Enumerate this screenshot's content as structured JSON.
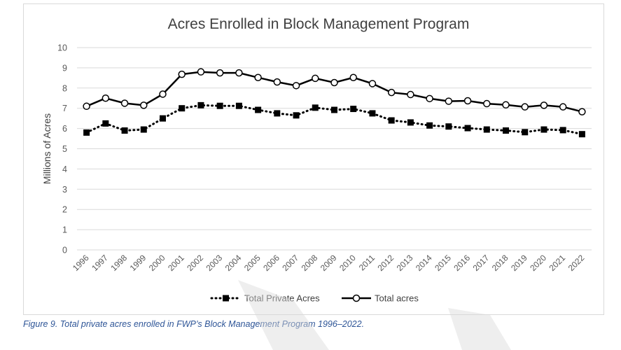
{
  "caption": "Figure 9. Total private acres enrolled in FWP’s Block Management Program 1996–2022.",
  "chart_data": {
    "type": "line",
    "title": "Acres Enrolled in Block Management Program",
    "ylabel": "Millions of Acres",
    "xlabel": "",
    "ylim": [
      0,
      10
    ],
    "yticks": [
      "0",
      "1",
      "2",
      "3",
      "4",
      "5",
      "6",
      "7",
      "8",
      "9",
      "10"
    ],
    "grid": true,
    "legend_position": "bottom",
    "categories": [
      "1996",
      "1997",
      "1998",
      "1999",
      "2000",
      "2001",
      "2002",
      "2003",
      "2004",
      "2005",
      "2006",
      "2007",
      "2008",
      "2009",
      "2010",
      "2011",
      "2012",
      "2013",
      "2014",
      "2015",
      "2016",
      "2017",
      "2018",
      "2019",
      "2020",
      "2021",
      "2022"
    ],
    "series": [
      {
        "name": "Total Private Acres",
        "style": "dotted-square",
        "color": "#000000",
        "values": [
          5.8,
          6.25,
          5.9,
          5.95,
          6.5,
          7.0,
          7.15,
          7.12,
          7.12,
          6.92,
          6.75,
          6.65,
          7.03,
          6.92,
          6.97,
          6.75,
          6.4,
          6.3,
          6.15,
          6.1,
          6.02,
          5.95,
          5.9,
          5.82,
          5.95,
          5.92,
          5.72
        ]
      },
      {
        "name": "Total acres",
        "style": "solid-circle",
        "color": "#000000",
        "values": [
          7.1,
          7.5,
          7.25,
          7.15,
          7.7,
          8.68,
          8.8,
          8.75,
          8.75,
          8.52,
          8.3,
          8.12,
          8.48,
          8.27,
          8.52,
          8.22,
          7.78,
          7.68,
          7.48,
          7.35,
          7.37,
          7.23,
          7.17,
          7.07,
          7.15,
          7.07,
          6.83
        ]
      }
    ]
  }
}
